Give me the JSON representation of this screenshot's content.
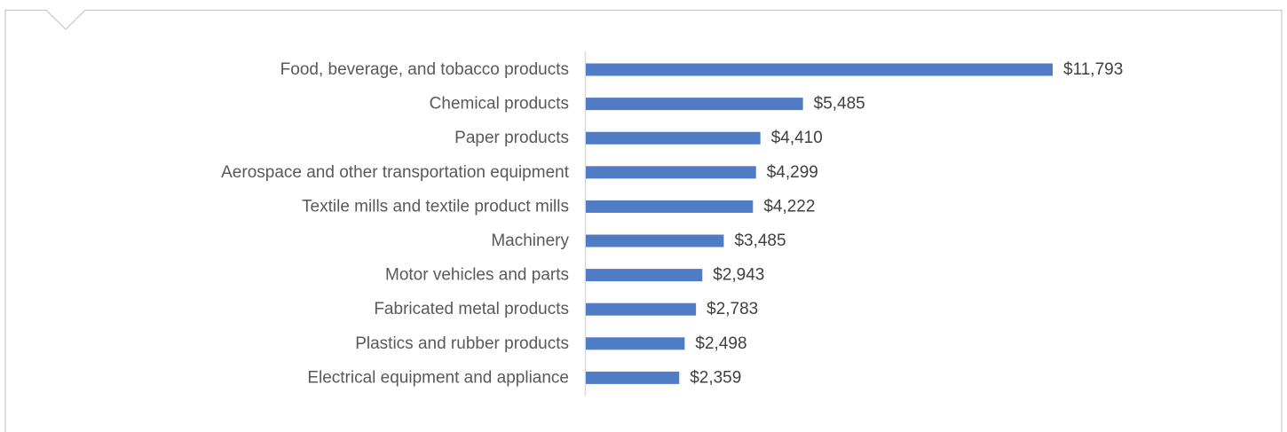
{
  "colors": {
    "bar": "#4f7cc4",
    "axis": "#d9d9d9",
    "frame": "#c8c8c8",
    "category_text": "#595959",
    "value_text": "#404040"
  },
  "chart_data": {
    "type": "bar",
    "orientation": "horizontal",
    "categories": [
      "Food, beverage, and tobacco products",
      "Chemical products",
      "Paper products",
      "Aerospace and other transportation equipment",
      "Textile mills and textile product mills",
      "Machinery",
      "Motor vehicles and parts",
      "Fabricated metal products",
      "Plastics and rubber products",
      "Electrical equipment and appliance"
    ],
    "values": [
      11793,
      5485,
      4410,
      4299,
      4222,
      3485,
      2943,
      2783,
      2498,
      2359
    ],
    "value_labels": [
      "$11,793",
      "$5,485",
      "$4,410",
      "$4,299",
      "$4,222",
      "$3,485",
      "$2,943",
      "$2,783",
      "$2,498",
      "$2,359"
    ],
    "title": "",
    "xlabel": "",
    "ylabel": "",
    "xlim": [
      0,
      11793
    ],
    "grid": false,
    "legend": "none"
  }
}
